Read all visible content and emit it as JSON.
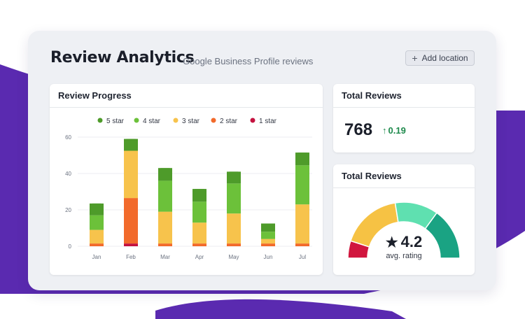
{
  "header": {
    "title": "Review Analytics",
    "subtitle": "Google Business Profile reviews",
    "add_location_label": "Add location"
  },
  "progress_card": {
    "title": "Review Progress"
  },
  "total_card": {
    "title": "Total Reviews",
    "value": "768",
    "delta": "0.19"
  },
  "rating_card": {
    "title": "Total Reviews",
    "value": "4.2",
    "label": "avg. rating"
  },
  "colors": {
    "purple": "#5a2ab0",
    "five_star": "#4e9b2a",
    "four_star": "#6cc13a",
    "three_star": "#f7c34c",
    "two_star": "#f26a2b",
    "one_star": "#c4123f",
    "gauge_yellow": "#f6c244",
    "gauge_mint": "#5fe0b0",
    "gauge_teal": "#1aa383",
    "gauge_red": "#d1163e"
  },
  "chart_data": {
    "type": "bar",
    "stacked": true,
    "categories": [
      "Jan",
      "Feb",
      "Mar",
      "Apr",
      "May",
      "Jun",
      "Jul"
    ],
    "series": [
      {
        "name": "1 star",
        "values": [
          0,
          1.5,
          0,
          0,
          0,
          0,
          0
        ]
      },
      {
        "name": "2 star",
        "values": [
          1.5,
          25,
          1.5,
          1.5,
          1.5,
          1.5,
          1.5
        ]
      },
      {
        "name": "3 star",
        "values": [
          7.5,
          26,
          17.5,
          11.5,
          16.5,
          2.5,
          21.5
        ]
      },
      {
        "name": "4 star",
        "values": [
          8,
          0,
          17,
          11.5,
          16.5,
          4,
          21.5
        ]
      },
      {
        "name": "5 star",
        "values": [
          6.5,
          6.5,
          7,
          7,
          6.5,
          4.5,
          7
        ]
      }
    ],
    "legend_order": [
      "5 star",
      "4 star",
      "3 star",
      "2 star",
      "1 star"
    ],
    "ylim": [
      0,
      60
    ],
    "yticks": [
      0,
      20,
      40,
      60
    ],
    "grid": true,
    "legend_position": "top"
  },
  "gauge_data": {
    "segments": [
      "gauge_red",
      "gauge_yellow",
      "gauge_mint",
      "gauge_teal"
    ],
    "shares": [
      0.1,
      0.35,
      0.25,
      0.3
    ]
  }
}
